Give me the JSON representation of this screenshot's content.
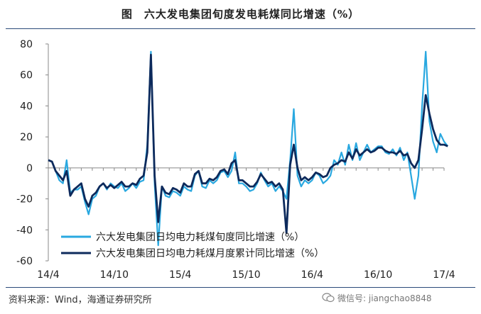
{
  "header": {
    "title": "图　六大发电集团旬度发电耗煤同比增速（%）"
  },
  "footer": {
    "source": "资料来源：Wind，海通证券研究所",
    "watermark": "微信号: jiangchao8848"
  },
  "chart_data": {
    "type": "line",
    "title": "图　六大发电集团旬度发电耗煤同比增速（%）",
    "xlabel": "",
    "ylabel": "",
    "ylim": [
      -60,
      80
    ],
    "yticks": [
      80,
      60,
      40,
      20,
      0,
      -20,
      -40,
      -60
    ],
    "xlim": [
      0,
      108
    ],
    "xtick_labels": [
      {
        "x": 0,
        "label": "14/4"
      },
      {
        "x": 18,
        "label": "14/10"
      },
      {
        "x": 36,
        "label": "15/4"
      },
      {
        "x": 54,
        "label": "15/10"
      },
      {
        "x": 72,
        "label": "16/4"
      },
      {
        "x": 90,
        "label": "16/10"
      },
      {
        "x": 108,
        "label": "17/4"
      }
    ],
    "grid": false,
    "legend_position": "bottom-left",
    "series": [
      {
        "name": "六大发电集团日均电力耗煤旬度同比增速（%）",
        "color": "#29a8e0",
        "points": [
          [
            0,
            5
          ],
          [
            1,
            4
          ],
          [
            2,
            -2
          ],
          [
            3,
            -8
          ],
          [
            4,
            -10
          ],
          [
            5,
            5
          ],
          [
            6,
            -16
          ],
          [
            7,
            -14
          ],
          [
            8,
            -14
          ],
          [
            9,
            -12
          ],
          [
            10,
            -22
          ],
          [
            11,
            -30
          ],
          [
            12,
            -20
          ],
          [
            13,
            -18
          ],
          [
            14,
            -12
          ],
          [
            15,
            -10
          ],
          [
            16,
            -14
          ],
          [
            17,
            -10
          ],
          [
            18,
            -12
          ],
          [
            19,
            -13
          ],
          [
            20,
            -10
          ],
          [
            21,
            -15
          ],
          [
            22,
            -13
          ],
          [
            23,
            -10
          ],
          [
            24,
            -13
          ],
          [
            25,
            -9
          ],
          [
            26,
            -8
          ],
          [
            27,
            15
          ],
          [
            28,
            75
          ],
          [
            29,
            -10
          ],
          [
            30,
            -50
          ],
          [
            31,
            -12
          ],
          [
            32,
            -18
          ],
          [
            33,
            -19
          ],
          [
            34,
            -15
          ],
          [
            35,
            -16
          ],
          [
            36,
            -18
          ],
          [
            37,
            -12
          ],
          [
            38,
            -14
          ],
          [
            39,
            -15
          ],
          [
            40,
            -5
          ],
          [
            41,
            -2
          ],
          [
            42,
            -12
          ],
          [
            43,
            -13
          ],
          [
            44,
            -8
          ],
          [
            45,
            -10
          ],
          [
            46,
            -8
          ],
          [
            47,
            -3
          ],
          [
            48,
            -2
          ],
          [
            49,
            -6
          ],
          [
            50,
            -2
          ],
          [
            51,
            10
          ],
          [
            52,
            -10
          ],
          [
            53,
            -10
          ],
          [
            54,
            -12
          ],
          [
            55,
            -15
          ],
          [
            56,
            -14
          ],
          [
            57,
            -10
          ],
          [
            58,
            -3
          ],
          [
            59,
            -8
          ],
          [
            60,
            -12
          ],
          [
            61,
            -10
          ],
          [
            62,
            -15
          ],
          [
            63,
            -12
          ],
          [
            64,
            -15
          ],
          [
            65,
            -20
          ],
          [
            66,
            5
          ],
          [
            67,
            38
          ],
          [
            68,
            -5
          ],
          [
            69,
            -12
          ],
          [
            70,
            -8
          ],
          [
            71,
            -10
          ],
          [
            72,
            -8
          ],
          [
            73,
            -3
          ],
          [
            74,
            -5
          ],
          [
            75,
            -10
          ],
          [
            76,
            -8
          ],
          [
            77,
            -5
          ],
          [
            78,
            5
          ],
          [
            79,
            2
          ],
          [
            80,
            10
          ],
          [
            81,
            2
          ],
          [
            82,
            15
          ],
          [
            83,
            5
          ],
          [
            84,
            16
          ],
          [
            85,
            5
          ],
          [
            86,
            10
          ],
          [
            87,
            15
          ],
          [
            88,
            10
          ],
          [
            89,
            12
          ],
          [
            90,
            14
          ],
          [
            91,
            14
          ],
          [
            92,
            10
          ],
          [
            93,
            9
          ],
          [
            94,
            12
          ],
          [
            95,
            8
          ],
          [
            96,
            13
          ],
          [
            97,
            5
          ],
          [
            98,
            10
          ],
          [
            99,
            -5
          ],
          [
            100,
            -20
          ],
          [
            101,
            -5
          ],
          [
            102,
            40
          ],
          [
            103,
            75
          ],
          [
            104,
            30
          ],
          [
            105,
            17
          ],
          [
            106,
            10
          ],
          [
            107,
            22
          ],
          [
            108,
            17
          ],
          [
            109,
            14
          ]
        ]
      },
      {
        "name": "六大发电集团日均电力耗煤月度累计同比增速（%）",
        "color": "#0d2a5c",
        "points": [
          [
            0,
            5
          ],
          [
            1,
            4
          ],
          [
            2,
            -2
          ],
          [
            3,
            -5
          ],
          [
            4,
            -8
          ],
          [
            5,
            -2
          ],
          [
            6,
            -18
          ],
          [
            7,
            -14
          ],
          [
            8,
            -12
          ],
          [
            9,
            -10
          ],
          [
            10,
            -20
          ],
          [
            11,
            -25
          ],
          [
            12,
            -18
          ],
          [
            13,
            -16
          ],
          [
            14,
            -12
          ],
          [
            15,
            -10
          ],
          [
            16,
            -13
          ],
          [
            17,
            -11
          ],
          [
            18,
            -13
          ],
          [
            19,
            -11
          ],
          [
            20,
            -9
          ],
          [
            21,
            -12
          ],
          [
            22,
            -12
          ],
          [
            23,
            -10
          ],
          [
            24,
            -11
          ],
          [
            25,
            -7
          ],
          [
            26,
            -5
          ],
          [
            27,
            10
          ],
          [
            28,
            73
          ],
          [
            29,
            -5
          ],
          [
            30,
            -35
          ],
          [
            31,
            -12
          ],
          [
            32,
            -16
          ],
          [
            33,
            -17
          ],
          [
            34,
            -13
          ],
          [
            35,
            -14
          ],
          [
            36,
            -16
          ],
          [
            37,
            -10
          ],
          [
            38,
            -12
          ],
          [
            39,
            -12
          ],
          [
            40,
            -4
          ],
          [
            41,
            -2
          ],
          [
            42,
            -10
          ],
          [
            43,
            -10
          ],
          [
            44,
            -7
          ],
          [
            45,
            -8
          ],
          [
            46,
            -6
          ],
          [
            47,
            -2
          ],
          [
            48,
            -1
          ],
          [
            49,
            -4
          ],
          [
            50,
            3
          ],
          [
            51,
            5
          ],
          [
            52,
            -8
          ],
          [
            53,
            -8
          ],
          [
            54,
            -10
          ],
          [
            55,
            -12
          ],
          [
            56,
            -12
          ],
          [
            57,
            -9
          ],
          [
            58,
            -4
          ],
          [
            59,
            -7
          ],
          [
            60,
            -10
          ],
          [
            61,
            -9
          ],
          [
            62,
            -12
          ],
          [
            63,
            -10
          ],
          [
            64,
            -14
          ],
          [
            65,
            -42
          ],
          [
            66,
            2
          ],
          [
            67,
            15
          ],
          [
            68,
            0
          ],
          [
            69,
            -8
          ],
          [
            70,
            -6
          ],
          [
            71,
            -8
          ],
          [
            72,
            -6
          ],
          [
            73,
            -3
          ],
          [
            74,
            -4
          ],
          [
            75,
            -6
          ],
          [
            76,
            -5
          ],
          [
            77,
            0
          ],
          [
            78,
            2
          ],
          [
            79,
            3
          ],
          [
            80,
            5
          ],
          [
            81,
            4
          ],
          [
            82,
            10
          ],
          [
            83,
            6
          ],
          [
            84,
            12
          ],
          [
            85,
            8
          ],
          [
            86,
            10
          ],
          [
            87,
            12
          ],
          [
            88,
            10
          ],
          [
            89,
            11
          ],
          [
            90,
            13
          ],
          [
            91,
            13
          ],
          [
            92,
            11
          ],
          [
            93,
            10
          ],
          [
            94,
            10
          ],
          [
            95,
            9
          ],
          [
            96,
            11
          ],
          [
            97,
            8
          ],
          [
            98,
            9
          ],
          [
            99,
            3
          ],
          [
            100,
            0
          ],
          [
            101,
            5
          ],
          [
            102,
            25
          ],
          [
            103,
            47
          ],
          [
            104,
            35
          ],
          [
            105,
            25
          ],
          [
            106,
            18
          ],
          [
            107,
            15
          ],
          [
            108,
            15
          ],
          [
            109,
            14
          ]
        ]
      }
    ]
  }
}
